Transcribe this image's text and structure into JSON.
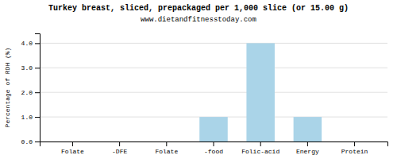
{
  "chart_data": {
    "type": "bar",
    "title": "Turkey breast, sliced, prepackaged per 1,000 slice (or 15.00 g)",
    "subtitle": "www.dietandfitnesstoday.com",
    "categories": [
      "Folate",
      "-DFE",
      "Folate",
      "-food",
      "Folic-acid",
      "Energy",
      "Protein"
    ],
    "values": [
      0.0,
      0.0,
      0.0,
      1.0,
      4.0,
      1.0,
      0.0
    ],
    "color": "#aad4e8",
    "ylabel": "Percentage of RDH (%)",
    "ylim": [
      0,
      4.4
    ],
    "yticks": [
      {
        "value": 0,
        "label": "0.0"
      },
      {
        "value": 1,
        "label": "1.0"
      },
      {
        "value": 2,
        "label": "2.0"
      },
      {
        "value": 3,
        "label": "3.0"
      },
      {
        "value": 4,
        "label": "4.0"
      }
    ],
    "grid": true
  }
}
